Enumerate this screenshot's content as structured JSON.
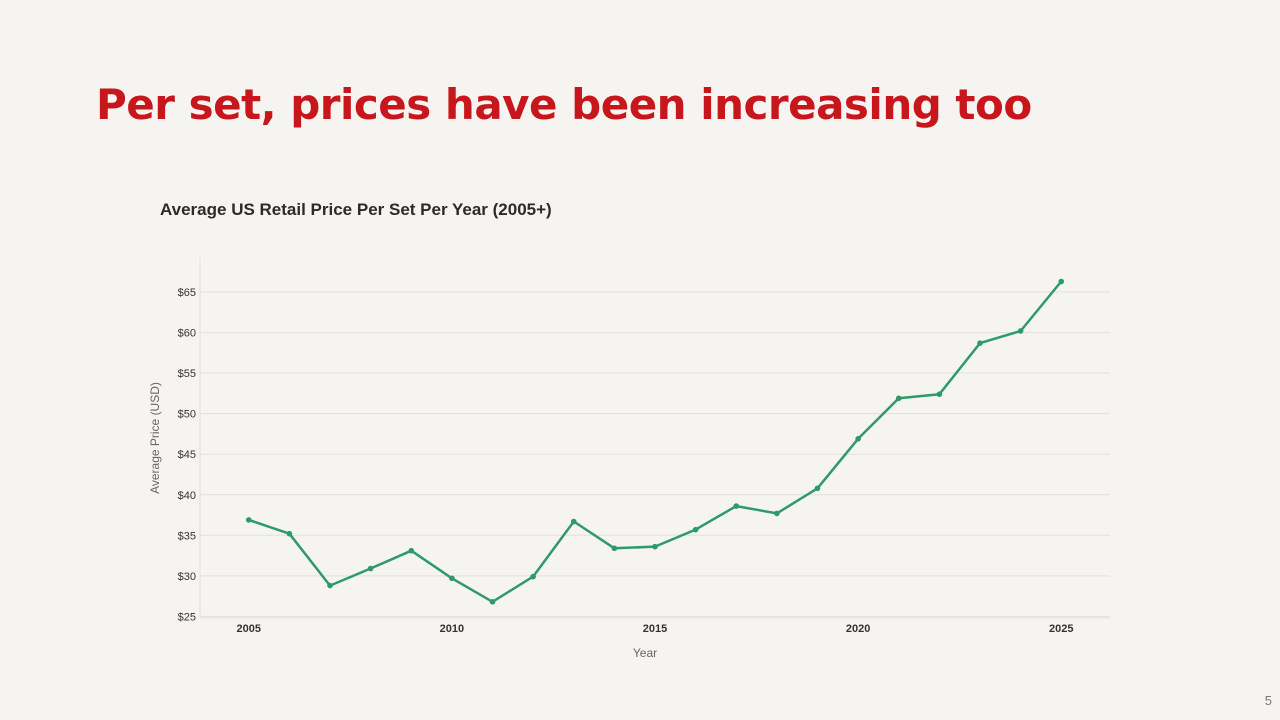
{
  "slide": {
    "title": "Per set, prices have been increasing too",
    "page_number": "5"
  },
  "colors": {
    "title": "#c8161d",
    "line": "#2e9a6a",
    "grid": "#e2e0dc",
    "axis_text": "#333333",
    "axis_label": "#666666",
    "background": "#f5f4f1"
  },
  "chart_data": {
    "type": "line",
    "title": "Average US Retail Price Per Set Per Year (2005+)",
    "xlabel": "Year",
    "ylabel": "Average Price (USD)",
    "xlim": [
      2003.8,
      2026.2
    ],
    "ylim": [
      24.8,
      69.2
    ],
    "x_ticks": [
      2005,
      2010,
      2015,
      2020,
      2025
    ],
    "y_ticks": [
      25,
      30,
      35,
      40,
      45,
      50,
      55,
      60,
      65
    ],
    "y_tick_prefix": "$",
    "grid": "horizontal",
    "legend": "none",
    "series": [
      {
        "x": [
          2005,
          2006,
          2007,
          2008,
          2009,
          2010,
          2011,
          2012,
          2013,
          2014,
          2015,
          2016,
          2017,
          2018,
          2019,
          2020,
          2021,
          2022,
          2023,
          2024,
          2025
        ],
        "values": [
          36.9,
          35.2,
          28.8,
          30.9,
          33.1,
          29.7,
          26.8,
          29.9,
          36.7,
          33.4,
          33.6,
          35.7,
          38.6,
          37.7,
          40.8,
          46.9,
          51.9,
          52.4,
          58.7,
          60.2,
          66.3
        ]
      }
    ]
  }
}
